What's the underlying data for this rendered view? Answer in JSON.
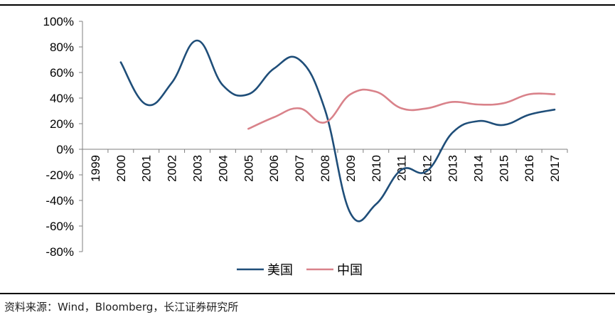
{
  "chart_data": {
    "type": "line",
    "categories": [
      "1999",
      "2000",
      "2001",
      "2002",
      "2003",
      "2004",
      "2005",
      "2006",
      "2007",
      "2008",
      "2009",
      "2010",
      "2011",
      "2012",
      "2013",
      "2014",
      "2015",
      "2016",
      "2017"
    ],
    "ylim": [
      -80,
      100
    ],
    "yticks": [
      -80,
      -60,
      -40,
      -20,
      0,
      20,
      40,
      60,
      80,
      100
    ],
    "ytick_labels": [
      "-80%",
      "-60%",
      "-40%",
      "-20%",
      "0%",
      "20%",
      "40%",
      "60%",
      "80%",
      "100%"
    ],
    "grid": false,
    "legend_position": "bottom",
    "series": [
      {
        "name": "美国",
        "color": "#1f4e79",
        "values": [
          null,
          68,
          35,
          52,
          85,
          50,
          43,
          63,
          70,
          31,
          -50,
          -43,
          -16,
          -17,
          13,
          22,
          19,
          27,
          31
        ]
      },
      {
        "name": "中国",
        "color": "#d9828a",
        "values": [
          null,
          null,
          null,
          null,
          null,
          null,
          16,
          25,
          32,
          21,
          43,
          45,
          32,
          32,
          37,
          35,
          36,
          43,
          43
        ]
      }
    ]
  },
  "source": "资料来源：Wind，Bloomberg，长江证券研究所"
}
